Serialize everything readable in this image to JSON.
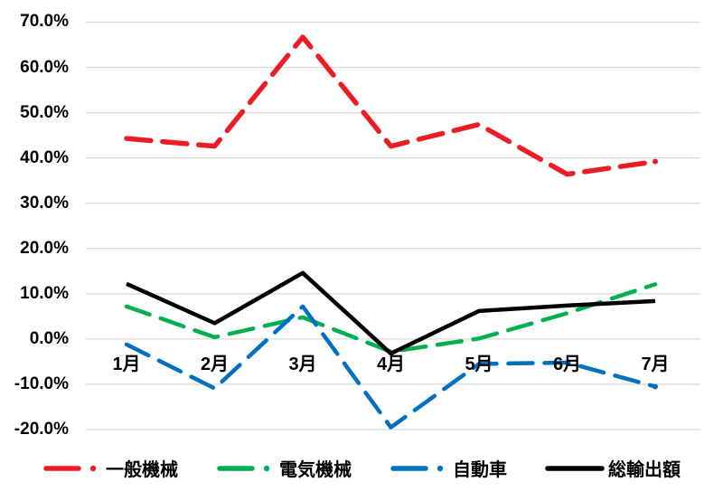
{
  "chart_data": {
    "type": "line",
    "title": "",
    "xlabel": "",
    "ylabel": "",
    "unit": "%",
    "categories": [
      "1月",
      "2月",
      "3月",
      "4月",
      "5月",
      "6月",
      "7月"
    ],
    "y_ticks": [
      "70.0%",
      "60.0%",
      "50.0%",
      "40.0%",
      "30.0%",
      "20.0%",
      "10.0%",
      "0.0%",
      "-10.0%",
      "-20.0%"
    ],
    "y_tick_values": [
      70,
      60,
      50,
      40,
      30,
      20,
      10,
      0,
      -10,
      -20
    ],
    "ylim": [
      -20,
      70
    ],
    "grid": "horizontal-only",
    "gridline_color": "#d9d9d9",
    "background_color": "#ffffff",
    "legend_position": "bottom",
    "series": [
      {
        "name": "一般機械",
        "color": "#ed1c24",
        "line_style": "long-dash",
        "line_width": 5.5,
        "end_dot": true,
        "values": [
          44.3,
          42.6,
          66.7,
          42.6,
          47.4,
          36.4,
          39.2
        ]
      },
      {
        "name": "電気機械",
        "color": "#00b050",
        "line_style": "long-dash",
        "line_width": 4.5,
        "end_dot": false,
        "values": [
          7.2,
          0.4,
          4.8,
          -2.8,
          0.1,
          5.7,
          12.1
        ]
      },
      {
        "name": "自動車",
        "color": "#0070c0",
        "line_style": "long-dash",
        "line_width": 4.5,
        "end_dot": true,
        "values": [
          -1.2,
          -10.9,
          7.2,
          -19.5,
          -5.5,
          -5.2,
          -10.5
        ]
      },
      {
        "name": "総輸出額",
        "color": "#000000",
        "line_style": "solid",
        "line_width": 4.5,
        "end_dot": false,
        "values": [
          12.2,
          3.5,
          14.6,
          -3.2,
          6.2,
          7.4,
          8.4
        ]
      }
    ]
  }
}
